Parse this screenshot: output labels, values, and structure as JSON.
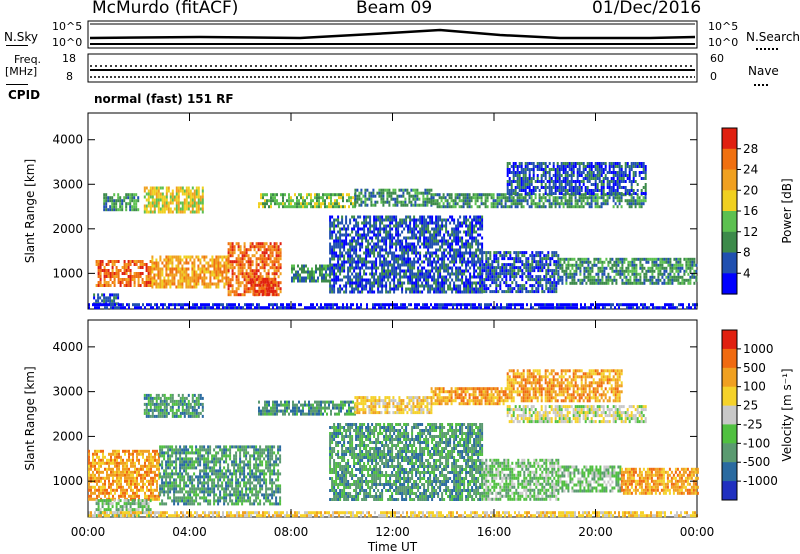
{
  "header": {
    "station": "McMurdo (fitACF)",
    "beam": "Beam 09",
    "date": "01/Dec/2016"
  },
  "top_strips": {
    "nsky_label": "N.Sky",
    "nsearch_label": "N.Search",
    "nsky_ticks": [
      "10^5",
      "10^0"
    ],
    "nsearch_ticks": [
      "10^5",
      "10^0"
    ],
    "freq_label_1": "Freq.",
    "freq_label_2": "[MHz]",
    "freq_ticks": [
      "18",
      "8"
    ],
    "nave_label": "Nave",
    "nave_ticks": [
      "60",
      "0"
    ],
    "cpid_label": "CPID",
    "cpid_value": "normal (fast) 151 RF"
  },
  "colors": {
    "power_scale": [
      "#0000ff",
      "#2050b0",
      "#3c8a4a",
      "#5cc050",
      "#f0d020",
      "#f0a020",
      "#f07010",
      "#e02010"
    ],
    "velocity_scale": [
      "#2030c0",
      "#2a6aa0",
      "#5a9a70",
      "#50c040",
      "#c8c8c8",
      "#f5d22a",
      "#f0a020",
      "#f06a10",
      "#e02010"
    ]
  },
  "chart_data": [
    {
      "type": "heatmap",
      "title": "",
      "xlabel": "",
      "ylabel": "Slant Range [km]",
      "x_ticks": [
        "00:00",
        "04:00",
        "08:00",
        "12:00",
        "16:00",
        "20:00",
        "00:00"
      ],
      "y_ticks": [
        "1000",
        "2000",
        "3000",
        "4000"
      ],
      "ylim": [
        200,
        4600
      ],
      "colorbar_label": "Power [dB]",
      "colorbar_ticks": [
        "4",
        "8",
        "12",
        "16",
        "20",
        "24",
        "28"
      ],
      "patches": [
        {
          "t0": 0.2,
          "t1": 1.2,
          "r0": 300,
          "r1": 550,
          "level": 1
        },
        {
          "t0": 0.3,
          "t1": 2.5,
          "r0": 700,
          "r1": 1300,
          "level": 6
        },
        {
          "t0": 2.5,
          "t1": 5.5,
          "r0": 700,
          "r1": 1400,
          "level": 5
        },
        {
          "t0": 5.5,
          "t1": 7.6,
          "r0": 550,
          "r1": 1700,
          "level": 6
        },
        {
          "t0": 6.4,
          "t1": 7.4,
          "r0": 500,
          "r1": 900,
          "level": 7
        },
        {
          "t0": 0.6,
          "t1": 2.0,
          "r0": 2400,
          "r1": 2800,
          "level": 2
        },
        {
          "t0": 2.2,
          "t1": 4.5,
          "r0": 2400,
          "r1": 2950,
          "level": 4
        },
        {
          "t0": 6.7,
          "t1": 10.5,
          "r0": 2500,
          "r1": 2800,
          "level": 3
        },
        {
          "t0": 10.5,
          "t1": 13.5,
          "r0": 2500,
          "r1": 2900,
          "level": 2
        },
        {
          "t0": 13.5,
          "t1": 22.0,
          "r0": 2500,
          "r1": 2800,
          "level": 2
        },
        {
          "t0": 8.0,
          "t1": 9.5,
          "r0": 800,
          "r1": 1200,
          "level": 2
        },
        {
          "t0": 9.5,
          "t1": 15.5,
          "r0": 600,
          "r1": 2300,
          "level": 1
        },
        {
          "t0": 15.5,
          "t1": 18.5,
          "r0": 600,
          "r1": 1500,
          "level": 1
        },
        {
          "t0": 18.5,
          "t1": 24.0,
          "r0": 750,
          "r1": 1350,
          "level": 2
        },
        {
          "t0": 16.5,
          "t1": 22.0,
          "r0": 2800,
          "r1": 3500,
          "level": 1
        },
        {
          "t0": 0.0,
          "t1": 24.0,
          "r0": 200,
          "r1": 330,
          "level": 0
        }
      ]
    },
    {
      "type": "heatmap",
      "title": "",
      "xlabel": "Time UT",
      "ylabel": "Slant Range [km]",
      "x_ticks": [
        "00:00",
        "04:00",
        "08:00",
        "12:00",
        "16:00",
        "20:00",
        "00:00"
      ],
      "y_ticks": [
        "1000",
        "2000",
        "3000",
        "4000"
      ],
      "ylim": [
        200,
        4600
      ],
      "colorbar_label": "Velocity [m s⁻¹]",
      "colorbar_ticks": [
        "1000",
        "500",
        "100",
        "25",
        "-25",
        "-100",
        "-500",
        "-1000"
      ],
      "patches": [
        {
          "t0": 0.0,
          "t1": 2.8,
          "r0": 600,
          "r1": 1700,
          "level": 6
        },
        {
          "t0": 0.3,
          "t1": 2.5,
          "r0": 250,
          "r1": 600,
          "level": 3
        },
        {
          "t0": 2.8,
          "t1": 7.6,
          "r0": 500,
          "r1": 1800,
          "level": 2
        },
        {
          "t0": 2.2,
          "t1": 4.5,
          "r0": 2450,
          "r1": 2950,
          "level": 2
        },
        {
          "t0": 6.7,
          "t1": 10.5,
          "r0": 2500,
          "r1": 2800,
          "level": 2
        },
        {
          "t0": 10.5,
          "t1": 13.5,
          "r0": 2500,
          "r1": 2900,
          "level": 5
        },
        {
          "t0": 13.5,
          "t1": 16.5,
          "r0": 2700,
          "r1": 3100,
          "level": 6
        },
        {
          "t0": 16.5,
          "t1": 22.0,
          "r0": 2350,
          "r1": 2700,
          "level": 4
        },
        {
          "t0": 9.5,
          "t1": 15.5,
          "r0": 600,
          "r1": 2300,
          "level": 2
        },
        {
          "t0": 15.5,
          "t1": 18.5,
          "r0": 600,
          "r1": 1500,
          "level": 3
        },
        {
          "t0": 18.5,
          "t1": 21.0,
          "r0": 750,
          "r1": 1350,
          "level": 3
        },
        {
          "t0": 21.0,
          "t1": 24.0,
          "r0": 750,
          "r1": 1300,
          "level": 6
        },
        {
          "t0": 16.5,
          "t1": 21.0,
          "r0": 2800,
          "r1": 3500,
          "level": 6
        },
        {
          "t0": 0.0,
          "t1": 24.0,
          "r0": 200,
          "r1": 330,
          "level": 5
        }
      ]
    }
  ]
}
